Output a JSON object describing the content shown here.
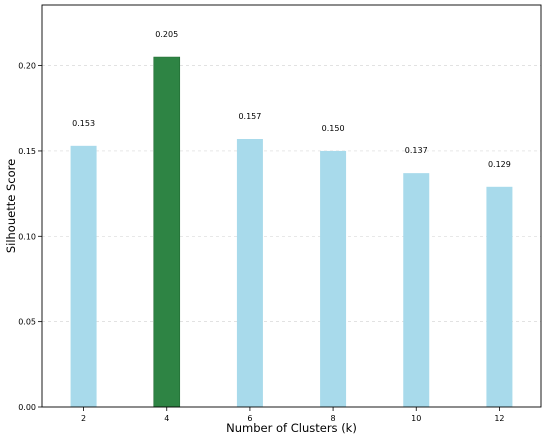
{
  "chart_data": {
    "type": "bar",
    "title": "",
    "xlabel": "Number of Clusters (k)",
    "ylabel": "Silhouette Score",
    "categories": [
      "2",
      "4",
      "6",
      "8",
      "10",
      "12"
    ],
    "values": [
      0.153,
      0.205,
      0.157,
      0.15,
      0.137,
      0.129
    ],
    "data_labels": [
      "0.153",
      "0.205",
      "0.157",
      "0.150",
      "0.137",
      "0.129"
    ],
    "highlight_index": 1,
    "yticks": [
      0.0,
      0.05,
      0.1,
      0.15,
      0.2
    ],
    "ytick_labels": [
      "0.00",
      "0.05",
      "0.10",
      "0.15",
      "0.20"
    ],
    "ylim": [
      0,
      0.2355
    ],
    "grid": "y-dashed",
    "colors": {
      "bar": "#a8daeb",
      "highlight": "#2e8444",
      "grid": "#d9d9d9",
      "axis": "#000000"
    }
  }
}
